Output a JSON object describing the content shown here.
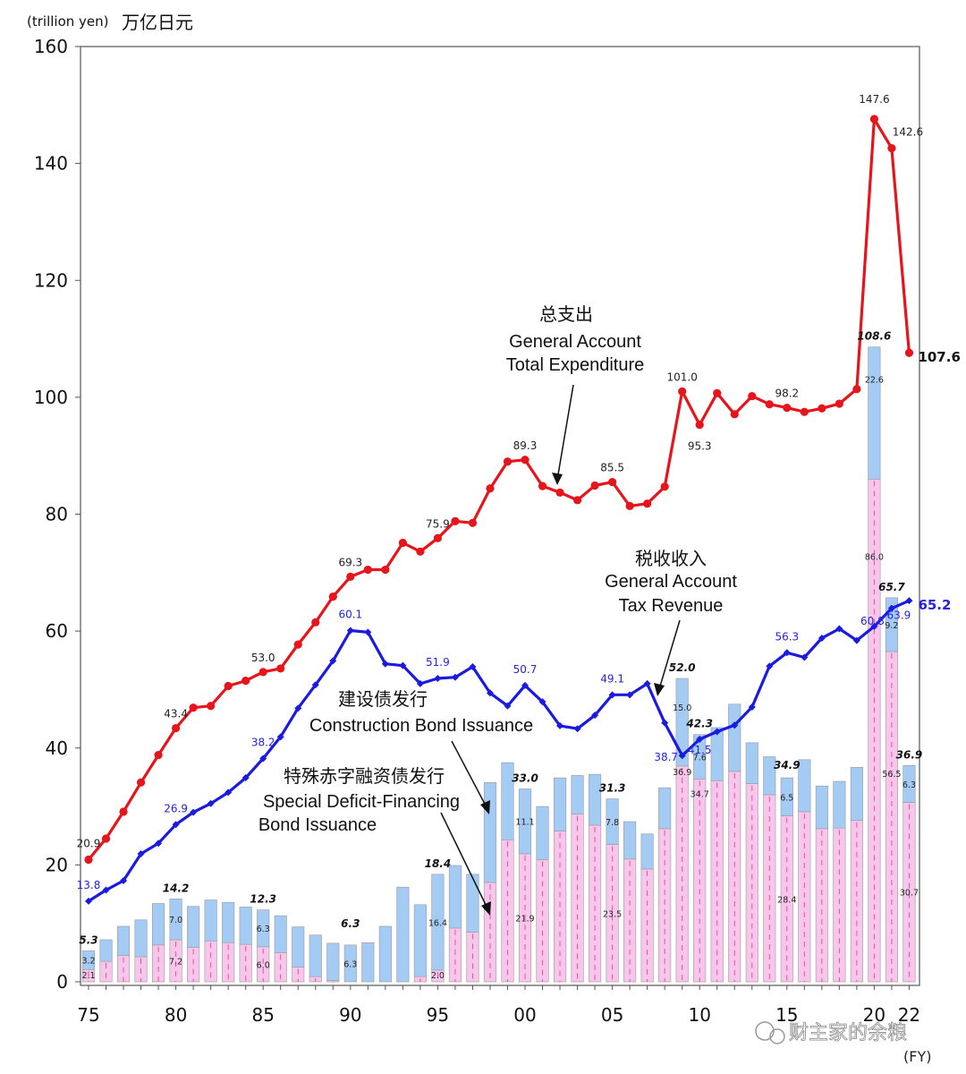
{
  "chart_data": {
    "type": "bar+line",
    "unit_label": "(trillion yen)",
    "unit_label_cn": "万亿日元",
    "xlabel": "(FY)",
    "ylim": [
      0,
      160
    ],
    "y_ticks": [
      "0",
      "20",
      "40",
      "60",
      "80",
      "100",
      "120",
      "140",
      "160"
    ],
    "x_tick_labels": [
      {
        "year": 1975,
        "label": "75"
      },
      {
        "year": 1980,
        "label": "80"
      },
      {
        "year": 1985,
        "label": "85"
      },
      {
        "year": 1990,
        "label": "90"
      },
      {
        "year": 1995,
        "label": "95"
      },
      {
        "year": 2000,
        "label": "00"
      },
      {
        "year": 2005,
        "label": "05"
      },
      {
        "year": 2010,
        "label": "10"
      },
      {
        "year": 2015,
        "label": "15"
      },
      {
        "year": 2020,
        "label": "20"
      },
      {
        "year": 2022,
        "label": "22"
      }
    ],
    "years": [
      1975,
      1976,
      1977,
      1978,
      1979,
      1980,
      1981,
      1982,
      1983,
      1984,
      1985,
      1986,
      1987,
      1988,
      1989,
      1990,
      1991,
      1992,
      1993,
      1994,
      1995,
      1996,
      1997,
      1998,
      1999,
      2000,
      2001,
      2002,
      2003,
      2004,
      2005,
      2006,
      2007,
      2008,
      2009,
      2010,
      2011,
      2012,
      2013,
      2014,
      2015,
      2016,
      2017,
      2018,
      2019,
      2020,
      2021,
      2022
    ],
    "series": [
      {
        "name": "General Account Total Expenditure",
        "name_cn": "总支出",
        "kind": "line",
        "color": "#e8141b",
        "values": [
          20.9,
          24.5,
          29.1,
          34.1,
          38.8,
          43.4,
          46.9,
          47.2,
          50.6,
          51.5,
          53.0,
          53.6,
          57.7,
          61.5,
          65.9,
          69.3,
          70.5,
          70.5,
          75.1,
          73.6,
          75.9,
          78.8,
          78.5,
          84.4,
          89.0,
          89.3,
          84.8,
          83.7,
          82.4,
          84.9,
          85.5,
          81.4,
          81.8,
          84.7,
          101.0,
          95.3,
          100.7,
          97.1,
          100.2,
          98.8,
          98.2,
          97.5,
          98.1,
          98.9,
          101.4,
          147.6,
          142.6,
          107.6
        ]
      },
      {
        "name": "General Account Tax Revenue",
        "name_cn": "税收收入",
        "kind": "line",
        "color": "#1a1ae0",
        "values": [
          13.8,
          15.7,
          17.3,
          21.9,
          23.7,
          26.9,
          29.0,
          30.5,
          32.4,
          34.9,
          38.2,
          41.9,
          46.8,
          50.8,
          54.9,
          60.1,
          59.8,
          54.4,
          54.1,
          51.0,
          51.9,
          52.1,
          53.9,
          49.4,
          47.2,
          50.7,
          47.9,
          43.8,
          43.3,
          45.6,
          49.1,
          49.1,
          51.0,
          44.3,
          38.7,
          41.5,
          42.8,
          43.9,
          47.0,
          54.0,
          56.3,
          55.5,
          58.8,
          60.4,
          58.4,
          60.8,
          63.9,
          65.2
        ]
      },
      {
        "name": "Construction Bond Issuance",
        "name_cn": "建设债发行",
        "kind": "bar-stack",
        "color": "#a3cbf3",
        "values": [
          3.2,
          3.7,
          5.0,
          6.3,
          7.1,
          7.0,
          7.0,
          7.0,
          6.9,
          6.4,
          6.3,
          6.3,
          6.9,
          7.1,
          6.4,
          6.3,
          6.7,
          9.5,
          16.2,
          12.3,
          16.4,
          10.7,
          9.9,
          17.1,
          13.2,
          11.1,
          9.1,
          9.1,
          6.6,
          8.7,
          7.8,
          6.4,
          6.0,
          7.0,
          15.0,
          7.6,
          9.1,
          11.5,
          7.0,
          6.5,
          6.5,
          8.9,
          7.3,
          8.0,
          9.1,
          22.6,
          9.2,
          6.3
        ]
      },
      {
        "name": "Special Deficit-Financing Bond Issuance",
        "name_cn": "特殊赤字融资债发行",
        "kind": "bar-stack",
        "color": "#f8c6ea",
        "values": [
          2.1,
          3.5,
          4.5,
          4.3,
          6.3,
          7.2,
          5.9,
          7.0,
          6.7,
          6.4,
          6.0,
          5.0,
          2.5,
          0.9,
          0.2,
          0.0,
          0.0,
          0.0,
          0.0,
          0.9,
          2.0,
          9.2,
          8.5,
          17.0,
          24.3,
          21.9,
          20.9,
          25.8,
          28.7,
          26.8,
          23.5,
          21.0,
          19.3,
          26.2,
          36.9,
          34.7,
          34.4,
          36.0,
          33.9,
          32.0,
          28.4,
          29.1,
          26.2,
          26.3,
          27.6,
          86.0,
          56.5,
          30.7
        ]
      }
    ],
    "bar_total_labels": [
      {
        "year": 1975,
        "text": "5.3"
      },
      {
        "year": 1980,
        "text": "14.2"
      },
      {
        "year": 1985,
        "text": "12.3"
      },
      {
        "year": 1990,
        "text": "6.3"
      },
      {
        "year": 1995,
        "text": "18.4"
      },
      {
        "year": 2000,
        "text": "33.0"
      },
      {
        "year": 2005,
        "text": "31.3"
      },
      {
        "year": 2009,
        "text": "52.0"
      },
      {
        "year": 2010,
        "text": "42.3"
      },
      {
        "year": 2015,
        "text": "34.9"
      },
      {
        "year": 2020,
        "text": "108.6"
      },
      {
        "year": 2021,
        "text": "65.7"
      },
      {
        "year": 2022,
        "text": "36.9"
      }
    ],
    "construction_labels": [
      {
        "year": 1975,
        "text": "3.2"
      },
      {
        "year": 1980,
        "text": "7.0"
      },
      {
        "year": 1985,
        "text": "6.3"
      },
      {
        "year": 1990,
        "text": "6.3"
      },
      {
        "year": 1995,
        "text": "16.4"
      },
      {
        "year": 2000,
        "text": "11.1"
      },
      {
        "year": 2005,
        "text": "7.8"
      },
      {
        "year": 2009,
        "text": "15.0"
      },
      {
        "year": 2010,
        "text": "7.6"
      },
      {
        "year": 2015,
        "text": "6.5"
      },
      {
        "year": 2020,
        "text": "22.6"
      },
      {
        "year": 2021,
        "text": "9.2"
      },
      {
        "year": 2022,
        "text": "6.3"
      }
    ],
    "deficit_labels": [
      {
        "year": 1975,
        "text": "2.1"
      },
      {
        "year": 1980,
        "text": "7.2"
      },
      {
        "year": 1985,
        "text": "6.0"
      },
      {
        "year": 1995,
        "text": "2.0"
      },
      {
        "year": 2000,
        "text": "21.9"
      },
      {
        "year": 2005,
        "text": "23.5"
      },
      {
        "year": 2009,
        "text": "36.9"
      },
      {
        "year": 2010,
        "text": "34.7"
      },
      {
        "year": 2015,
        "text": "28.4"
      },
      {
        "year": 2020,
        "text": "86.0"
      },
      {
        "year": 2021,
        "text": "56.5"
      },
      {
        "year": 2022,
        "text": "30.7"
      }
    ],
    "expenditure_labels": [
      {
        "year": 1975,
        "text": "20.9"
      },
      {
        "year": 1980,
        "text": "43.4"
      },
      {
        "year": 1985,
        "text": "53.0"
      },
      {
        "year": 1990,
        "text": "69.3"
      },
      {
        "year": 1995,
        "text": "75.9"
      },
      {
        "year": 2000,
        "text": "89.3"
      },
      {
        "year": 2005,
        "text": "85.5"
      },
      {
        "year": 2009,
        "text": "101.0"
      },
      {
        "year": 2010,
        "text": "95.3"
      },
      {
        "year": 2015,
        "text": "98.2"
      },
      {
        "year": 2020,
        "text": "147.6"
      },
      {
        "year": 2021,
        "text": "142.6"
      },
      {
        "year": 2022,
        "text": "107.6"
      }
    ],
    "revenue_labels": [
      {
        "year": 1975,
        "text": "13.8"
      },
      {
        "year": 1980,
        "text": "26.9"
      },
      {
        "year": 1985,
        "text": "38.2"
      },
      {
        "year": 1990,
        "text": "60.1"
      },
      {
        "year": 1995,
        "text": "51.9"
      },
      {
        "year": 2000,
        "text": "50.7"
      },
      {
        "year": 2005,
        "text": "49.1"
      },
      {
        "year": 2009,
        "text": "38.7"
      },
      {
        "year": 2010,
        "text": "41.5"
      },
      {
        "year": 2015,
        "text": "56.3"
      },
      {
        "year": 2020,
        "text": "60.8"
      },
      {
        "year": 2021,
        "text": "63.9"
      },
      {
        "year": 2022,
        "text": "65.2"
      }
    ],
    "annotations": {
      "expenditure_cn": "总支出",
      "expenditure_en_1": "General Account",
      "expenditure_en_2": "Total Expenditure",
      "revenue_cn": "税收收入",
      "revenue_en_1": "General Account",
      "revenue_en_2": "Tax Revenue",
      "construction_cn": "建设债发行",
      "construction_en": "Construction Bond Issuance",
      "deficit_cn": "特殊赤字融资债发行",
      "deficit_en_1": "Special Deficit-Financing",
      "deficit_en_2": "Bond Issuance"
    },
    "watermark": "财主家的余粮"
  }
}
